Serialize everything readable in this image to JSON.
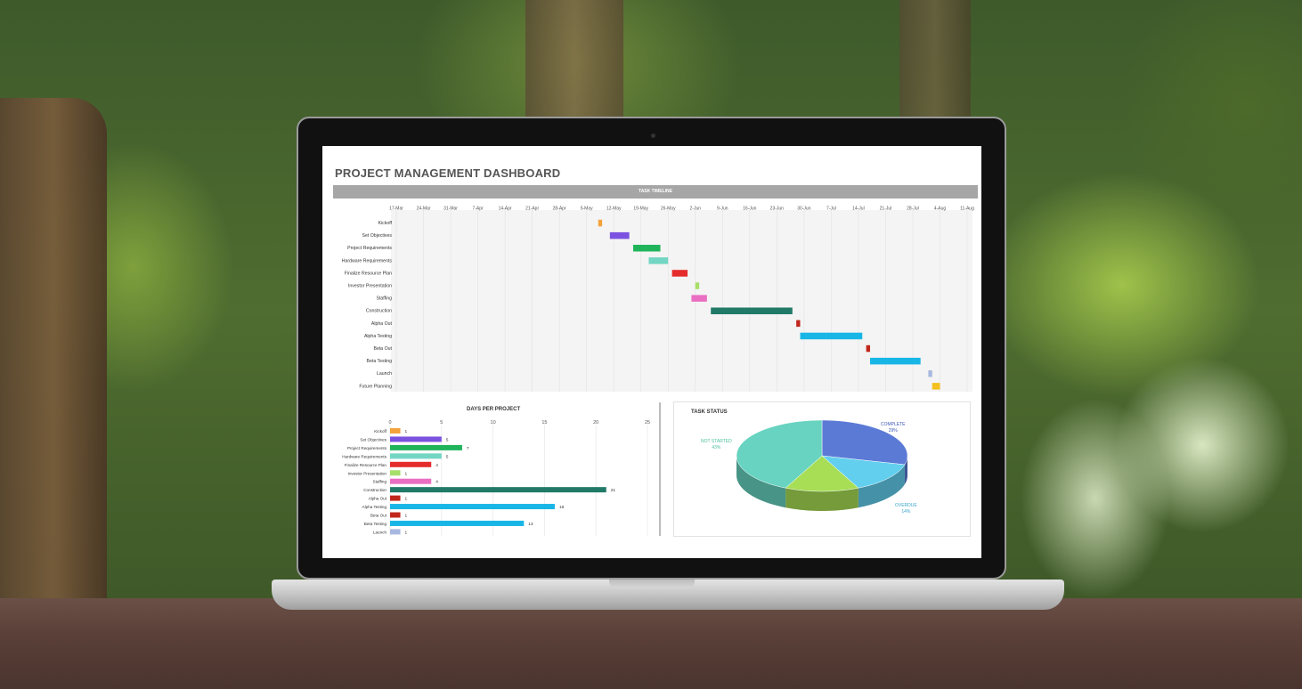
{
  "dashboard": {
    "title": "PROJECT MANAGEMENT DASHBOARD",
    "timeline_header": "TASK TIMELINE",
    "days_title": "DAYS PER PROJECT",
    "status_title": "TASK STATUS"
  },
  "gantt": {
    "dates": [
      "17-Mar",
      "24-Mar",
      "31-Mar",
      "7-Apr",
      "14-Apr",
      "21-Apr",
      "28-Apr",
      "5-May",
      "12-May",
      "19-May",
      "26-May",
      "2-Jun",
      "9-Jun",
      "16-Jun",
      "23-Jun",
      "30-Jun",
      "7-Jul",
      "14-Jul",
      "21-Jul",
      "28-Jul",
      "4-Aug",
      "11-Aug"
    ],
    "tasks": [
      {
        "name": "Kickoff",
        "start_day": 52,
        "duration": 1,
        "color": "#f4a23a"
      },
      {
        "name": "Set Objectives",
        "start_day": 55,
        "duration": 5,
        "color": "#7b52e0"
      },
      {
        "name": "Project Requirements",
        "start_day": 61,
        "duration": 7,
        "color": "#1fb45a"
      },
      {
        "name": "Hardware Requirements",
        "start_day": 65,
        "duration": 5,
        "color": "#72d6c3"
      },
      {
        "name": "Finalize Resource Plan",
        "start_day": 71,
        "duration": 4,
        "color": "#e52b2b"
      },
      {
        "name": "Investor Presentation",
        "start_day": 77,
        "duration": 1,
        "color": "#a7df6a"
      },
      {
        "name": "Staffing",
        "start_day": 76,
        "duration": 4,
        "color": "#ea6fc3"
      },
      {
        "name": "Construction",
        "start_day": 81,
        "duration": 21,
        "color": "#217a68"
      },
      {
        "name": "Alpha Out",
        "start_day": 103,
        "duration": 1,
        "color": "#c1271b"
      },
      {
        "name": "Alpha Testing",
        "start_day": 104,
        "duration": 16,
        "color": "#18b6e6"
      },
      {
        "name": "Beta Out",
        "start_day": 121,
        "duration": 1,
        "color": "#c1271b"
      },
      {
        "name": "Beta Testing",
        "start_day": 122,
        "duration": 13,
        "color": "#18b6e6"
      },
      {
        "name": "Launch",
        "start_day": 137,
        "duration": 1,
        "color": "#a9b8e0"
      },
      {
        "name": "Future Planning",
        "start_day": 138,
        "duration": 2,
        "color": "#f5c01e"
      }
    ]
  },
  "chart_data": [
    {
      "type": "bar",
      "title": "DAYS PER PROJECT",
      "orientation": "horizontal",
      "xlim": [
        0,
        25
      ],
      "ticks": [
        0,
        5,
        10,
        15,
        20,
        25
      ],
      "categories": [
        "Kickoff",
        "Set Objectives",
        "Project Requirements",
        "Hardware Requirements",
        "Finalize Resource Plan",
        "Investor Presentation",
        "Staffing",
        "Construction",
        "Alpha Out",
        "Alpha Testing",
        "Beta Out",
        "Beta Testing",
        "Launch"
      ],
      "values": [
        1,
        5,
        7,
        5,
        4,
        1,
        4,
        21,
        1,
        16,
        1,
        13,
        1
      ],
      "colors": [
        "#f4a23a",
        "#7b52e0",
        "#1fb45a",
        "#72d6c3",
        "#e52b2b",
        "#a7df6a",
        "#ea6fc3",
        "#217a68",
        "#c1271b",
        "#18b6e6",
        "#c1271b",
        "#18b6e6",
        "#a9b8e0"
      ]
    },
    {
      "type": "pie",
      "title": "TASK STATUS",
      "slices": [
        {
          "label": "COMPLETE",
          "value": 29,
          "display": "29%",
          "color": "#5b7ad6"
        },
        {
          "label": "OVERDUE",
          "value": 14,
          "display": "14%",
          "color": "#63cfee"
        },
        {
          "label": "",
          "value": 14,
          "display": "",
          "color": "#a7de55"
        },
        {
          "label": "NOT STARTED",
          "value": 43,
          "display": "43%",
          "color": "#67d3c0"
        }
      ]
    }
  ]
}
